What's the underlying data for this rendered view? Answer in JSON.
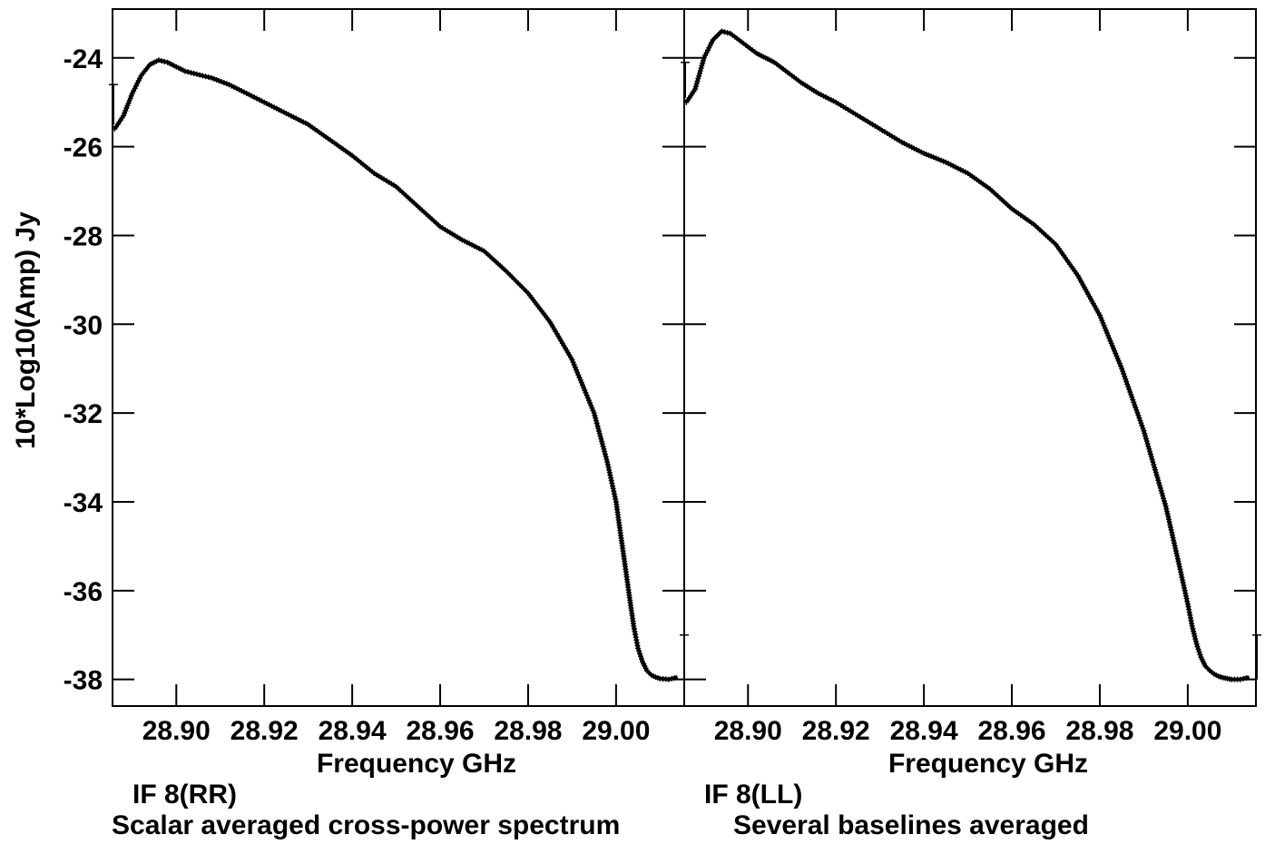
{
  "chart_data": {
    "type": "line",
    "ylabel": "10*Log10(Amp) Jy",
    "ylim": [
      -38.6,
      -22.9
    ],
    "yticks": [
      -24,
      -26,
      -28,
      -30,
      -32,
      -34,
      -36,
      -38
    ],
    "xlim": [
      28.8855,
      29.0155
    ],
    "xticks": [
      28.9,
      28.92,
      28.94,
      28.96,
      28.98,
      29.0
    ],
    "grid": false,
    "marker": "+",
    "panels": [
      {
        "xlabel": "Frequency GHz",
        "caption": "IF 8(RR)",
        "series": [
          {
            "x": [
              28.886,
              28.888,
              28.89,
              28.892,
              28.894,
              28.896,
              28.898,
              28.9,
              28.902,
              28.904,
              28.906,
              28.908,
              28.912,
              28.916,
              28.92,
              28.925,
              28.93,
              28.935,
              28.94,
              28.945,
              28.95,
              28.955,
              28.96,
              28.965,
              28.97,
              28.975,
              28.98,
              28.985,
              28.99,
              28.995,
              28.998,
              29.0,
              29.001,
              29.002,
              29.003,
              29.004,
              29.005,
              29.006,
              29.007,
              29.008,
              29.009,
              29.01,
              29.012,
              29.014
            ],
            "y": [
              -25.6,
              -25.3,
              -24.8,
              -24.4,
              -24.15,
              -24.05,
              -24.1,
              -24.2,
              -24.3,
              -24.35,
              -24.4,
              -24.45,
              -24.6,
              -24.8,
              -25.0,
              -25.25,
              -25.5,
              -25.85,
              -26.2,
              -26.6,
              -26.9,
              -27.35,
              -27.8,
              -28.1,
              -28.35,
              -28.8,
              -29.3,
              -29.95,
              -30.8,
              -32.0,
              -33.1,
              -34.0,
              -34.7,
              -35.4,
              -36.1,
              -36.8,
              -37.3,
              -37.6,
              -37.8,
              -37.9,
              -37.95,
              -37.98,
              -38.0,
              -37.95
            ]
          }
        ]
      },
      {
        "xlabel": "Frequency GHz",
        "caption": "IF 8(LL)",
        "series": [
          {
            "x": [
              28.886,
              28.888,
              28.89,
              28.892,
              28.894,
              28.896,
              28.898,
              28.9,
              28.902,
              28.904,
              28.906,
              28.908,
              28.912,
              28.916,
              28.92,
              28.925,
              28.93,
              28.935,
              28.94,
              28.945,
              28.95,
              28.955,
              28.96,
              28.965,
              28.97,
              28.975,
              28.98,
              28.985,
              28.99,
              28.995,
              28.998,
              29.0,
              29.001,
              29.002,
              29.003,
              29.004,
              29.005,
              29.006,
              29.007,
              29.008,
              29.009,
              29.01,
              29.012,
              29.014
            ],
            "y": [
              -25.0,
              -24.7,
              -24.0,
              -23.6,
              -23.4,
              -23.45,
              -23.6,
              -23.75,
              -23.9,
              -24.0,
              -24.1,
              -24.25,
              -24.55,
              -24.8,
              -25.0,
              -25.3,
              -25.6,
              -25.9,
              -26.15,
              -26.35,
              -26.6,
              -26.95,
              -27.4,
              -27.75,
              -28.2,
              -28.9,
              -29.8,
              -31.0,
              -32.4,
              -34.1,
              -35.4,
              -36.3,
              -36.8,
              -37.2,
              -37.5,
              -37.7,
              -37.8,
              -37.88,
              -37.93,
              -37.96,
              -37.98,
              -38.0,
              -38.0,
              -37.95
            ]
          }
        ]
      }
    ]
  },
  "footer": {
    "caption_line": "Scalar averaged cross-power spectrum",
    "caption_line_right": "Several baselines averaged"
  }
}
